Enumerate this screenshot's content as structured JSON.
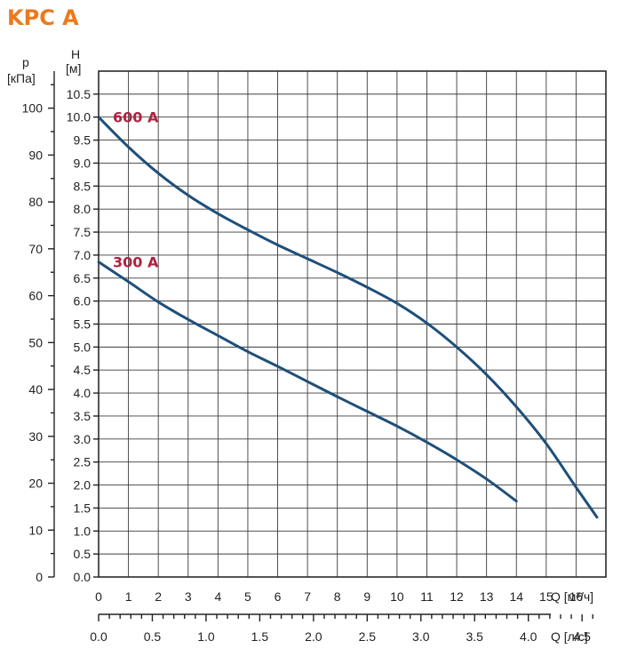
{
  "chart_data": {
    "type": "line",
    "title": "KPC A",
    "colors": {
      "title": "#ec7a1c",
      "curve": "#1e4f7a",
      "series_label": "#b0223f",
      "grid": "#3c3c3c"
    },
    "grid": true,
    "x": {
      "label": "Q [м³/ч]",
      "lim": [
        0,
        17
      ],
      "ticks": [
        "0",
        "1",
        "2",
        "3",
        "4",
        "5",
        "6",
        "7",
        "8",
        "9",
        "10",
        "11",
        "12",
        "13",
        "14",
        "15",
        "16"
      ]
    },
    "x2": {
      "label": "Q [л/с]",
      "lim": [
        0,
        4.722
      ],
      "ticks": [
        "0.0",
        "0.5",
        "1.0",
        "1.5",
        "2.0",
        "2.5",
        "3.0",
        "3.5",
        "4.0",
        "4.5"
      ]
    },
    "y": {
      "label_top": "H",
      "label_unit": "[м]",
      "lim": [
        0,
        11
      ],
      "ticks": [
        "0.0",
        "0.5",
        "1.0",
        "1.5",
        "2.0",
        "2.5",
        "3.0",
        "3.5",
        "4.0",
        "4.5",
        "5.0",
        "5.5",
        "6.0",
        "6.5",
        "7.0",
        "7.5",
        "8.0",
        "8.5",
        "9.0",
        "9.5",
        "10.0",
        "10.5"
      ]
    },
    "y2": {
      "label_top": "p",
      "label_unit": "[кПа]",
      "lim": [
        0,
        107.9
      ],
      "ticks": [
        "0",
        "10",
        "20",
        "30",
        "40",
        "50",
        "60",
        "70",
        "80",
        "90",
        "100"
      ]
    },
    "series": [
      {
        "name": "600 A",
        "x": [
          0,
          1,
          2,
          3,
          4,
          5,
          6,
          7,
          8,
          9,
          10,
          11,
          12,
          13,
          14,
          15,
          16,
          16.7
        ],
        "y": [
          10.0,
          9.35,
          8.78,
          8.3,
          7.9,
          7.55,
          7.22,
          6.92,
          6.62,
          6.3,
          5.95,
          5.52,
          5.0,
          4.4,
          3.7,
          2.9,
          1.95,
          1.3
        ]
      },
      {
        "name": "300 A",
        "x": [
          0,
          1,
          2,
          3,
          4,
          5,
          6,
          7,
          8,
          9,
          10,
          11,
          12,
          13,
          14
        ],
        "y": [
          6.85,
          6.42,
          5.98,
          5.6,
          5.25,
          4.9,
          4.58,
          4.25,
          3.92,
          3.6,
          3.28,
          2.93,
          2.55,
          2.13,
          1.65
        ]
      }
    ]
  }
}
